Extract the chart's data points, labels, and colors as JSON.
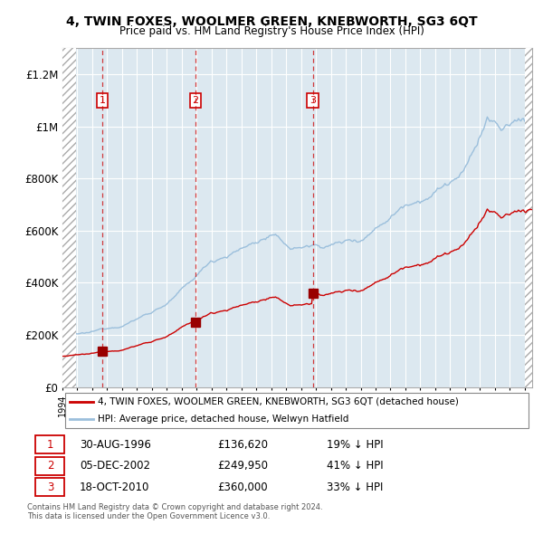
{
  "title": "4, TWIN FOXES, WOOLMER GREEN, KNEBWORTH, SG3 6QT",
  "subtitle": "Price paid vs. HM Land Registry's House Price Index (HPI)",
  "ylim": [
    0,
    1300000
  ],
  "yticks": [
    0,
    200000,
    400000,
    600000,
    800000,
    1000000,
    1200000
  ],
  "ytick_labels": [
    "£0",
    "£200K",
    "£400K",
    "£600K",
    "£800K",
    "£1M",
    "£1.2M"
  ],
  "hpi_color": "#9bbfdc",
  "price_color": "#cc0000",
  "plot_bg": "#dce8f0",
  "transactions": [
    {
      "date_num": 1996.67,
      "price": 136620,
      "label": "1"
    },
    {
      "date_num": 2002.92,
      "price": 249950,
      "label": "2"
    },
    {
      "date_num": 2010.79,
      "price": 360000,
      "label": "3"
    }
  ],
  "transaction_dates": [
    "30-AUG-1996",
    "05-DEC-2002",
    "18-OCT-2010"
  ],
  "transaction_prices": [
    "£136,620",
    "£249,950",
    "£360,000"
  ],
  "transaction_notes": [
    "19% ↓ HPI",
    "41% ↓ HPI",
    "33% ↓ HPI"
  ],
  "legend_house": "4, TWIN FOXES, WOOLMER GREEN, KNEBWORTH, SG3 6QT (detached house)",
  "legend_hpi": "HPI: Average price, detached house, Welwyn Hatfield",
  "footer": "Contains HM Land Registry data © Crown copyright and database right 2024.\nThis data is licensed under the Open Government Licence v3.0.",
  "xmin": 1994.0,
  "xmax": 2025.5,
  "hatch_left_end": 1994.92,
  "hatch_right_start": 2025.0
}
